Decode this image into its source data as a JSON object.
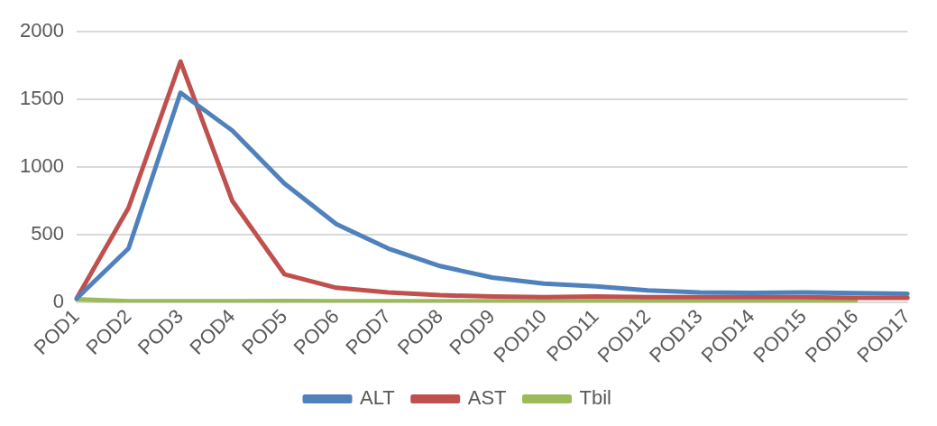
{
  "chart_data": {
    "type": "line",
    "categories": [
      "POD1",
      "POD2",
      "POD3",
      "POD4",
      "POD5",
      "POD6",
      "POD7",
      "POD8",
      "POD9",
      "POD10",
      "POD11",
      "POD12",
      "POD13",
      "POD14",
      "POD15",
      "POD16",
      "POD17"
    ],
    "series": [
      {
        "name": "ALT",
        "color": "#4f81bd",
        "values": [
          30,
          400,
          1550,
          1270,
          880,
          580,
          400,
          270,
          185,
          140,
          120,
          90,
          75,
          72,
          75,
          70,
          65
        ]
      },
      {
        "name": "AST",
        "color": "#c0504d",
        "values": [
          30,
          700,
          1780,
          750,
          210,
          110,
          75,
          55,
          45,
          40,
          45,
          40,
          40,
          40,
          40,
          35,
          35
        ]
      },
      {
        "name": "Tbil",
        "color": "#9bbb59",
        "values": [
          25,
          10,
          10,
          10,
          12,
          10,
          10,
          10,
          10,
          10,
          10,
          10,
          10,
          10,
          10,
          10,
          null
        ]
      }
    ],
    "ylim": [
      0,
      2000
    ],
    "yticks": [
      0,
      500,
      1000,
      1500,
      2000
    ],
    "grid": "y",
    "legend": "bottom",
    "marker": "none",
    "line_style": "solid"
  }
}
